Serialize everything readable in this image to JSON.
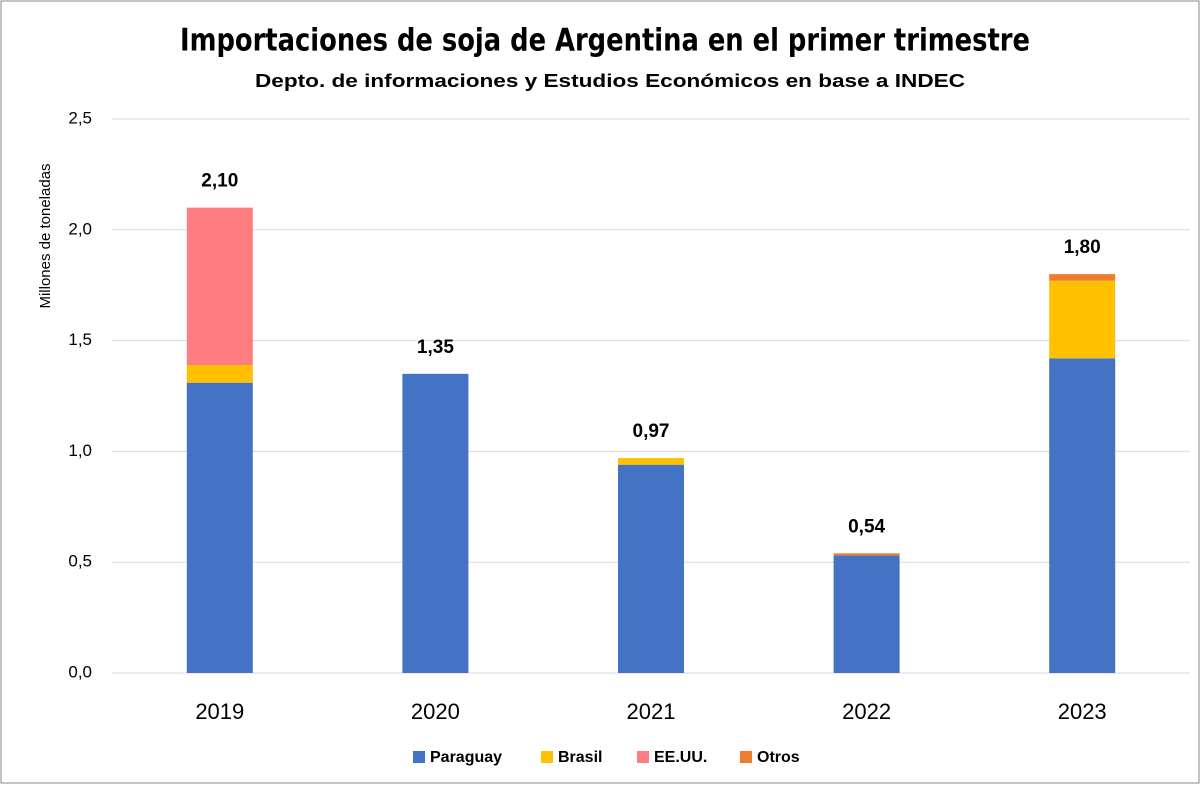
{
  "chart_data": {
    "type": "stacked_bar",
    "title": "Importaciones de soja de Argentina en el primer trimestre",
    "subtitle": "Depto. de informaciones y Estudios Económicos en base a INDEC",
    "y_label": "Millones de toneladas",
    "categories": [
      "2019",
      "2020",
      "2021",
      "2022",
      "2023"
    ],
    "series": [
      {
        "name": "Paraguay",
        "color": "#4472c4",
        "values": [
          1.31,
          1.35,
          0.94,
          0.53,
          1.42
        ]
      },
      {
        "name": "Brasil",
        "color": "#ffc000",
        "values": [
          0.08,
          0,
          0.03,
          0,
          0.35
        ]
      },
      {
        "name": "EE.UU.",
        "color": "#ff7c80",
        "values": [
          0.71,
          0,
          0,
          0,
          0
        ]
      },
      {
        "name": "Otros",
        "color": "#ed7d31",
        "values": [
          0,
          0,
          0,
          0.01,
          0.03
        ]
      }
    ],
    "totals": [
      {
        "value": 2.1,
        "label": "2,10"
      },
      {
        "value": 1.35,
        "label": "1,35"
      },
      {
        "value": 0.97,
        "label": "0,97"
      },
      {
        "value": 0.54,
        "label": "0,54"
      },
      {
        "value": 1.8,
        "label": "1,80"
      }
    ],
    "ylim": [
      0,
      2.5
    ],
    "yticks": [
      {
        "value": 0,
        "label": "0,0"
      },
      {
        "value": 0.5,
        "label": "0,5"
      },
      {
        "value": 1,
        "label": "1,0"
      },
      {
        "value": 1.5,
        "label": "1,5"
      },
      {
        "value": 2,
        "label": "2,0"
      },
      {
        "value": 2.5,
        "label": "2,5"
      }
    ],
    "grid": true,
    "legend": "bottom"
  }
}
